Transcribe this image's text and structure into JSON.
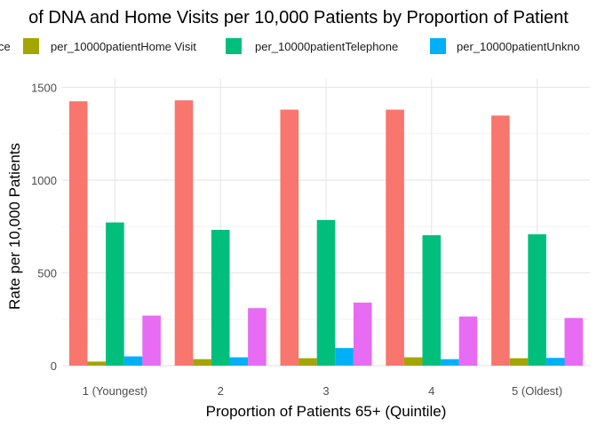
{
  "chart_data": {
    "type": "bar",
    "title": "of DNA and Home Visits per 10,000 Patients by Proportion of Patient",
    "xlabel": "Proportion of Patients 65+ (Quintile)",
    "ylabel": "Rate per 10,000 Patients",
    "ylim": [
      0,
      1550
    ],
    "yticks": [
      0,
      500,
      1000,
      1500
    ],
    "grid": true,
    "legend_position": "top",
    "categories": [
      "1 (Youngest)",
      "2",
      "3",
      "4",
      "5 (Oldest)"
    ],
    "legend_labels": [
      "ce",
      "per_10000patientHome Visit",
      "per_10000patientTelephone",
      "per_10000patientUnkno",
      ""
    ],
    "series": [
      {
        "color": "#F8766D",
        "values": [
          1425,
          1430,
          1380,
          1380,
          1348
        ]
      },
      {
        "color": "#A3A500",
        "values": [
          22,
          35,
          40,
          45,
          40
        ]
      },
      {
        "color": "#00BF7D",
        "values": [
          772,
          732,
          785,
          703,
          708
        ]
      },
      {
        "color": "#00B0F6",
        "values": [
          50,
          45,
          95,
          35,
          42
        ]
      },
      {
        "color": "#E76BF3",
        "values": [
          270,
          310,
          340,
          265,
          257
        ]
      }
    ]
  }
}
